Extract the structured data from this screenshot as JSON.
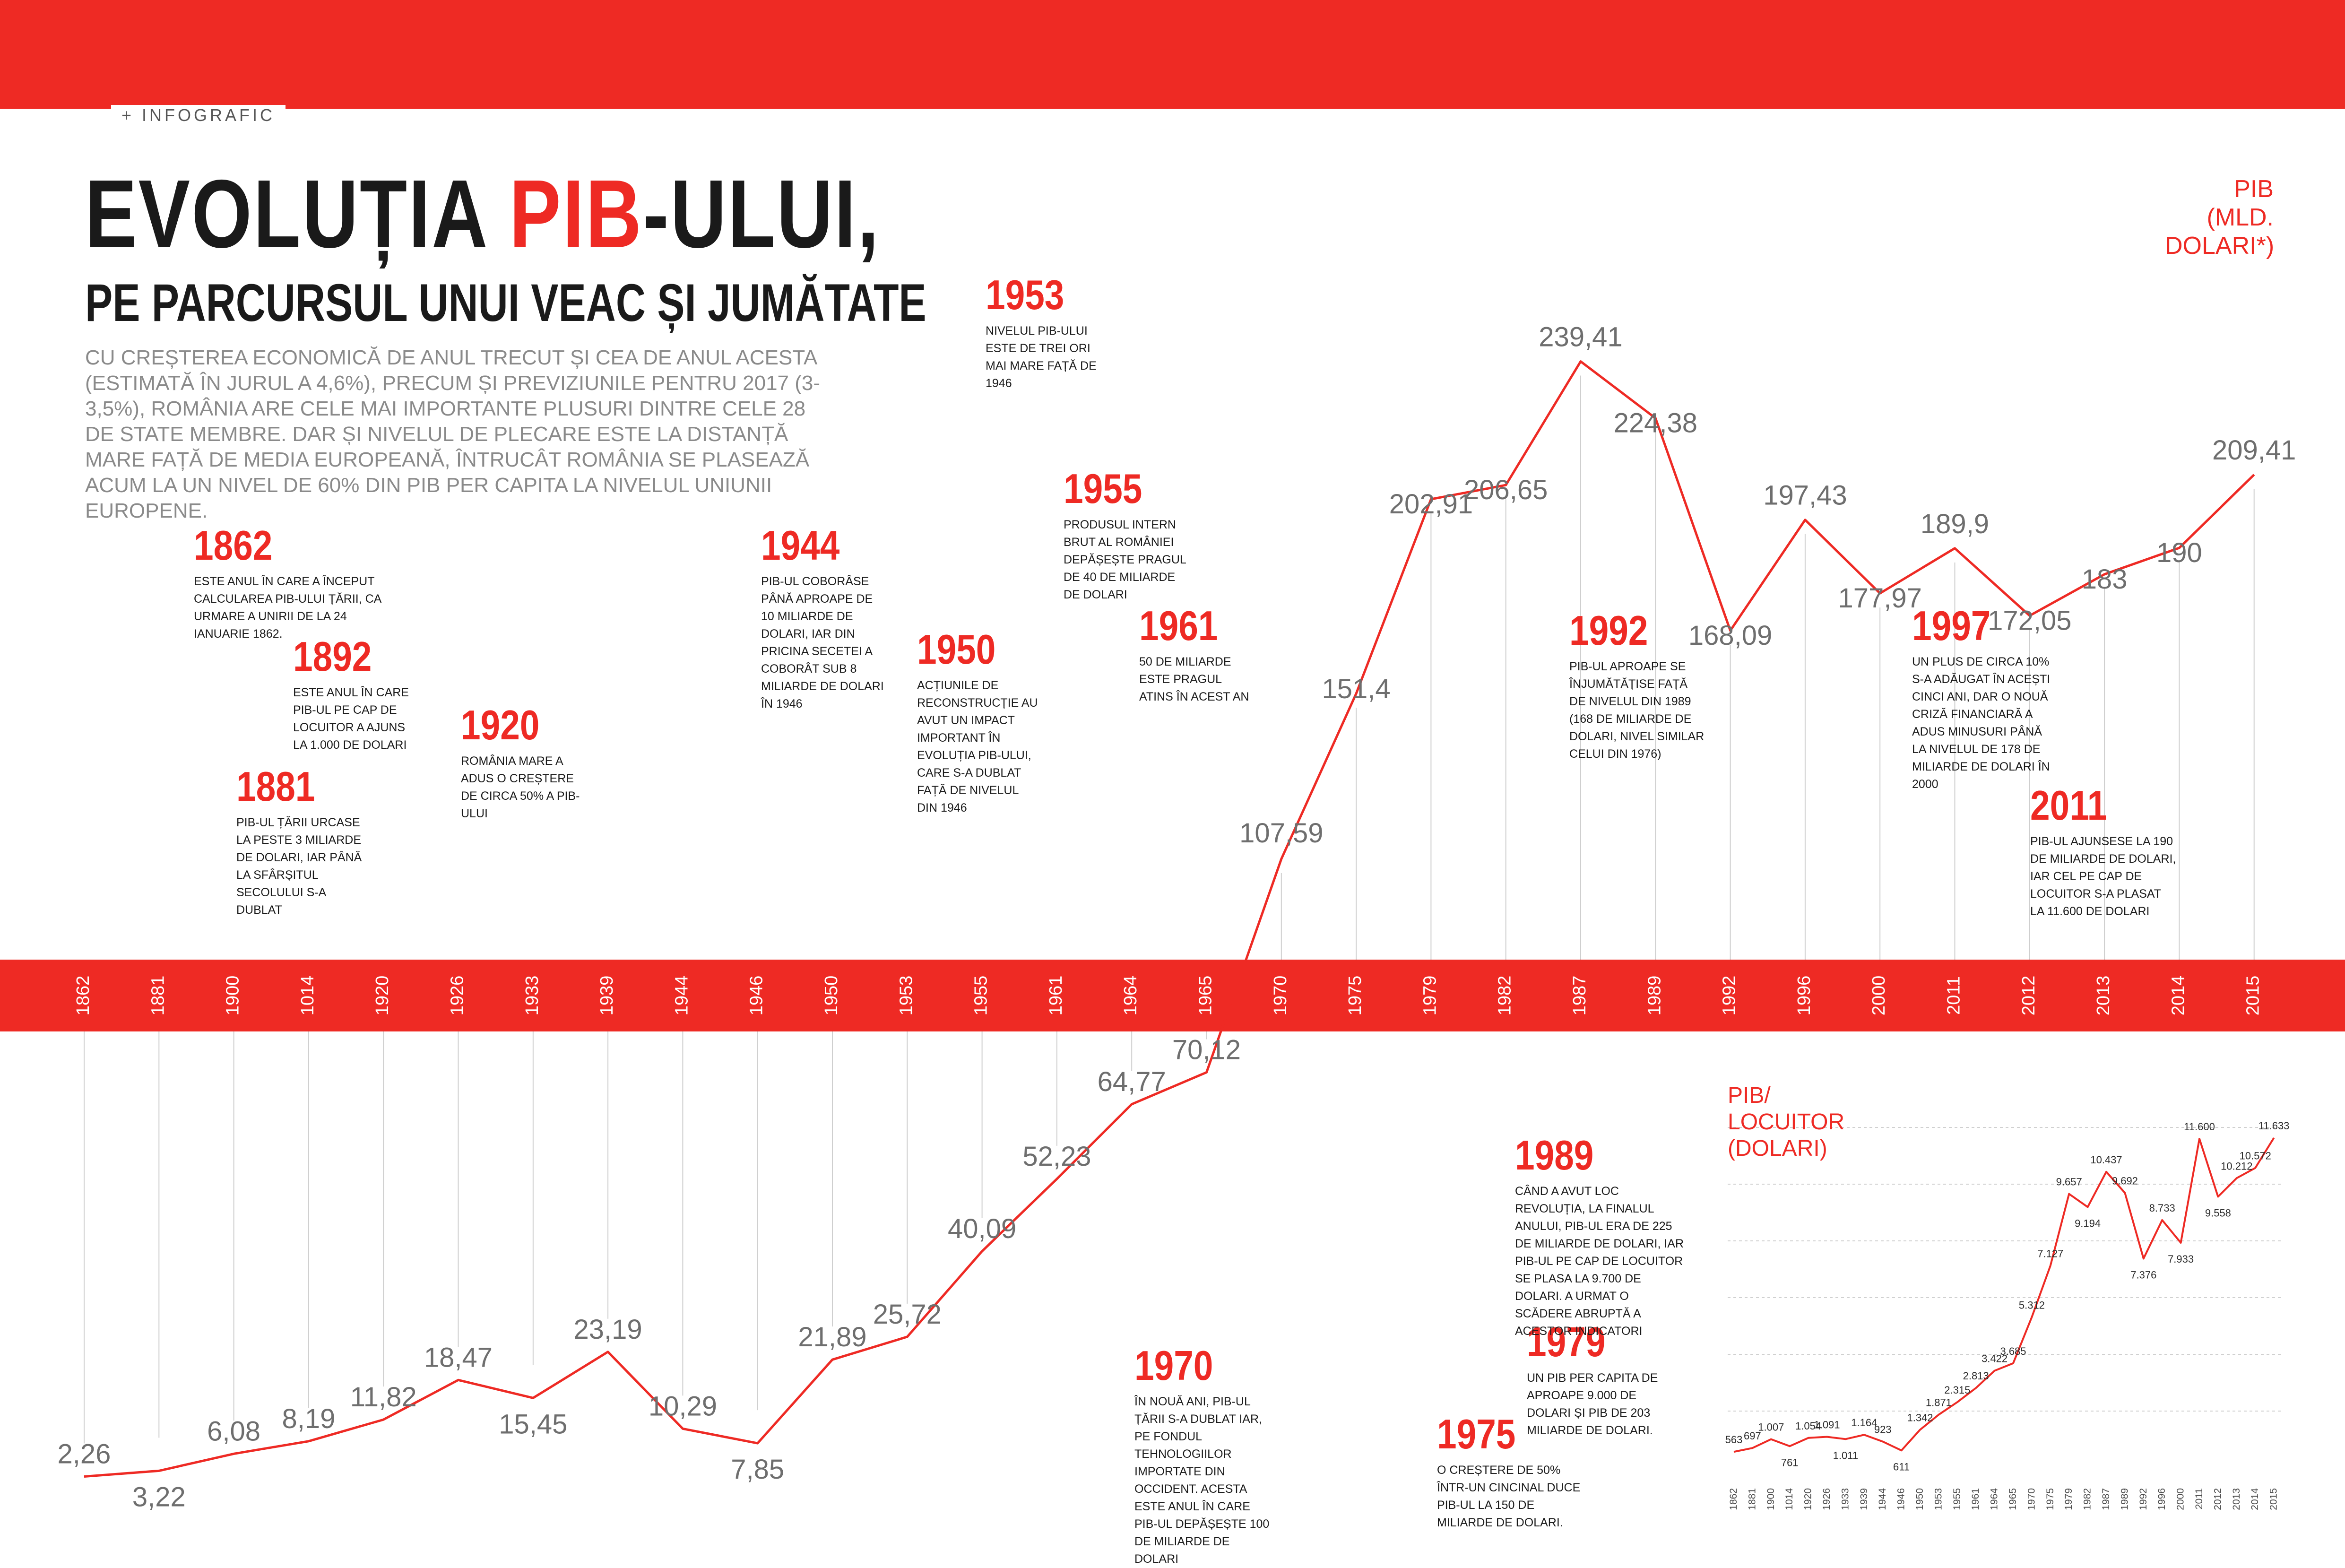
{
  "section_tag": "+ INFOGRAFIC",
  "title": {
    "part1": "EVOLUȚIA ",
    "part2": "PIB",
    "part3": "-ULUI,"
  },
  "subtitle": "PE PARCURSUL UNUI VEAC ȘI JUMĂTATE",
  "intro": "Cu creșterea economică de anul trecut și cea de anul acesta (estimată în jurul a 4,6%), precum și previziunile pentru 2017 (3-3,5%), România are cele mai importante plusuri dintre cele 28 de state membre. Dar și nivelul de plecare este la distanță mare față de media europeană, întrucât România se plasează acum la un nivel de 60% din PIB per capita la nivelul Uniunii Europene.",
  "pib_axis_label": "PIB (MLD. DOLARI*)",
  "capita_label": "PIB/ LOCUITOR (DOLARI)",
  "colors": {
    "accent": "#ee2a24",
    "text": "#1a1a1a",
    "muted": "#8a8a8a"
  },
  "events": [
    {
      "year": "1862",
      "text": "Este anul în care a început calcularea PIB-ului țării, ca urmare a Unirii de la 24 ianuarie 1862."
    },
    {
      "year": "1892",
      "text": "Este anul în care PIB-ul pe cap de locuitor a ajuns la 1.000 de dolari"
    },
    {
      "year": "1881",
      "text": "PIB-ul țării urcase la peste 3 miliarde de dolari, iar până la sfârșitul secolului s-a dublat"
    },
    {
      "year": "1920",
      "text": "România Mare a adus o creștere de circa 50% a PIB-ului"
    },
    {
      "year": "1944",
      "text": "PIB-ul coborâse până aproape de 10 miliarde de dolari, iar din pricina secetei a coborât sub 8 miliarde de dolari în 1946"
    },
    {
      "year": "1950",
      "text": "Acțiunile de reconstrucție au avut un impact important în evoluția PIB-ului, care s-a dublat față de nivelul din 1946"
    },
    {
      "year": "1953",
      "text": "Nivelul PIB-ului este de trei ori mai mare față de 1946"
    },
    {
      "year": "1955",
      "text": "Produsul intern brut al României depășește pragul de 40 de miliarde de dolari"
    },
    {
      "year": "1961",
      "text": "50 de miliarde este pragul atins în acest an"
    },
    {
      "year": "1970",
      "text": "În nouă ani, PIB-ul țării s-a dublat iar, pe fondul tehnologiilor importate din Occident. Acesta este anul în care PIB-ul depășește 100 de miliarde de dolari"
    },
    {
      "year": "1975",
      "text": "O creștere de 50% într-un cincinal duce PIB-ul la 150 de miliarde de dolari."
    },
    {
      "year": "1979",
      "text": "Un PIB per capita de aproape 9.000 de dolari și PIB de 203 miliarde de dolari."
    },
    {
      "year": "1989",
      "text": "Când a avut loc Revoluția, la finalul anului, PIB-ul era de 225 de miliarde de dolari, iar PIB-ul pe cap de locuitor se plasa la 9.700 de dolari. A urmat o scădere abruptă a acestor indicatori"
    },
    {
      "year": "1992",
      "text": "PIB-ul aproape se înjumătățise față de nivelul din 1989 (168 de miliarde de dolari, nivel similar celui din 1976)"
    },
    {
      "year": "1997",
      "text": "Un plus de circa 10% s-a adăugat în acești cinci ani, dar o nouă criză financiară a adus minusuri până la nivelul de 178 de miliarde de dolari în 2000"
    },
    {
      "year": "2011",
      "text": "PIB-ul ajunsese la 190 de miliarde de dolari, iar cel pe cap de locuitor s-a plasat la 11.600 de dolari"
    }
  ],
  "chart_data": [
    {
      "type": "line",
      "ylabel": "PIB (MLD. DOLARI*)",
      "categories": [
        "1862",
        "1881",
        "1900",
        "1014",
        "1920",
        "1926",
        "1933",
        "1939",
        "1944",
        "1946",
        "1950",
        "1953",
        "1955",
        "1961",
        "1964",
        "1965",
        "1970",
        "1975",
        "1979",
        "1982",
        "1987",
        "1989",
        "1992",
        "1996",
        "2000",
        "2011",
        "2012",
        "2013",
        "2014",
        "2015"
      ],
      "value_labels": [
        "2,26",
        "3,22",
        "6,08",
        "8,19",
        "11,82",
        "18,47",
        "15,45",
        "23,19",
        "10,29",
        "7,85",
        "21,89",
        "25,72",
        "40,09",
        "52,23",
        "64,77",
        "70,12",
        "107,59",
        "151,4",
        "202,91",
        "206,65",
        "239,41",
        "224,38",
        "168,09",
        "197,43",
        "177,97",
        "189,9",
        "172,05",
        "183",
        "190",
        "209,41"
      ],
      "values": [
        2.26,
        3.22,
        6.08,
        8.19,
        11.82,
        18.47,
        15.45,
        23.19,
        10.29,
        7.85,
        21.89,
        25.72,
        40.09,
        52.23,
        64.77,
        70.12,
        107.59,
        151.4,
        202.91,
        206.65,
        239.41,
        224.38,
        168.09,
        197.43,
        177.97,
        189.9,
        172.05,
        183,
        190,
        209.41
      ]
    },
    {
      "type": "line",
      "ylabel": "PIB/ LOCUITOR (DOLARI)",
      "categories": [
        "1862",
        "1881",
        "1900",
        "1014",
        "1920",
        "1926",
        "1933",
        "1939",
        "1944",
        "1946",
        "1950",
        "1953",
        "1955",
        "1961",
        "1964",
        "1965",
        "1970",
        "1975",
        "1979",
        "1982",
        "1987",
        "1989",
        "1992",
        "1996",
        "2000",
        "2011",
        "2012",
        "2013",
        "2014",
        "2015"
      ],
      "value_labels": [
        "563",
        "697",
        "1.007",
        "761",
        "1.054",
        "1.091",
        "1.011",
        "1.164",
        "923",
        "611",
        "1.342",
        "1.871",
        "2.315",
        "2.813",
        "3.422",
        "3.685",
        "5.312",
        "7.127",
        "9.657",
        "9.194",
        "10.437",
        "9.692",
        "7.376",
        "8.733",
        "7.933",
        "11.600",
        "9.558",
        "10.212",
        "10.572",
        "11.633"
      ],
      "values": [
        563,
        697,
        1007,
        761,
        1054,
        1091,
        1011,
        1164,
        923,
        611,
        1342,
        1871,
        2315,
        2813,
        3422,
        3685,
        5312,
        7127,
        9657,
        9194,
        10437,
        9692,
        7376,
        8733,
        7933,
        11600,
        9558,
        10212,
        10572,
        11633
      ]
    }
  ]
}
